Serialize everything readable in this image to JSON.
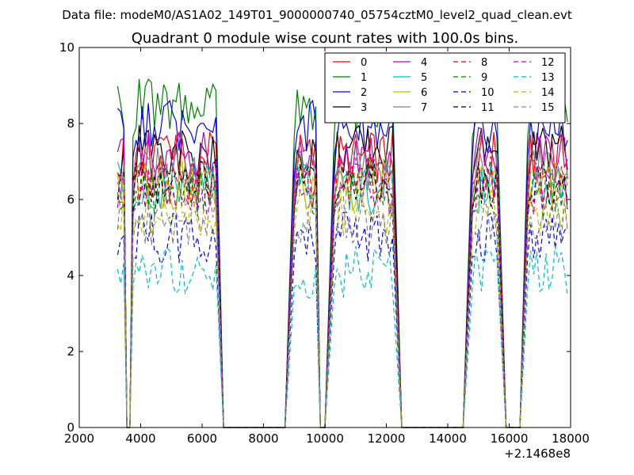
{
  "chart_data": {
    "type": "line",
    "suptitle": "Data file: modeM0/AS1A02_149T01_9000000740_05754cztM0_level2_quad_clean.evt",
    "title": "Quadrant 0 module wise count rates with 100.0s bins.",
    "xlabel": "",
    "ylabel": "",
    "xlim": [
      2000,
      18000
    ],
    "ylim": [
      0,
      10
    ],
    "x_offset_label": "+2.1468e8",
    "xticks": [
      2000,
      4000,
      6000,
      8000,
      10000,
      12000,
      14000,
      16000,
      18000
    ],
    "xtick_labels": [
      "2000",
      "4000",
      "6000",
      "8000",
      "10000",
      "12000",
      "14000",
      "16000",
      "18000"
    ],
    "yticks": [
      0,
      2,
      4,
      6,
      8,
      10
    ],
    "ytick_labels": [
      "0",
      "2",
      "4",
      "6",
      "8",
      "10"
    ],
    "legend_position": "upper-right",
    "legend_ncols": 4,
    "data_segments": [
      [
        3250,
        3450
      ],
      [
        3750,
        6500
      ],
      [
        9000,
        9700
      ],
      [
        10300,
        12200
      ],
      [
        14800,
        15600
      ],
      [
        16600,
        17950
      ]
    ],
    "gap_zero_x": [
      3550,
      3650,
      6700,
      8700,
      9850,
      10000,
      12500,
      14500,
      15900,
      16350
    ],
    "series": [
      {
        "name": "0",
        "color": "#ff0000",
        "style": "solid",
        "base": 7.1
      },
      {
        "name": "1",
        "color": "#008000",
        "style": "solid",
        "base": 8.5
      },
      {
        "name": "2",
        "color": "#0000ff",
        "style": "solid",
        "base": 7.9
      },
      {
        "name": "3",
        "color": "#000000",
        "style": "solid",
        "base": 7.3
      },
      {
        "name": "4",
        "color": "#bf00bf",
        "style": "solid",
        "base": 7.2
      },
      {
        "name": "5",
        "color": "#00bfbf",
        "style": "solid",
        "base": 6.3
      },
      {
        "name": "6",
        "color": "#bfbf00",
        "style": "solid",
        "base": 6.4
      },
      {
        "name": "7",
        "color": "#808080",
        "style": "solid",
        "base": 6.7
      },
      {
        "name": "8",
        "color": "#ff0000",
        "style": "dashed",
        "base": 6.5
      },
      {
        "name": "9",
        "color": "#008000",
        "style": "dashed",
        "base": 6.2
      },
      {
        "name": "10",
        "color": "#0000ff",
        "style": "dashed",
        "base": 5.0
      },
      {
        "name": "11",
        "color": "#000000",
        "style": "dashed",
        "base": 6.4
      },
      {
        "name": "12",
        "color": "#bf00bf",
        "style": "dashed",
        "base": 6.3
      },
      {
        "name": "13",
        "color": "#00bfbf",
        "style": "dashed",
        "base": 4.1
      },
      {
        "name": "14",
        "color": "#bfbf00",
        "style": "dashed",
        "base": 5.7
      },
      {
        "name": "15",
        "color": "#808080",
        "style": "dashed",
        "base": 5.5
      }
    ]
  }
}
